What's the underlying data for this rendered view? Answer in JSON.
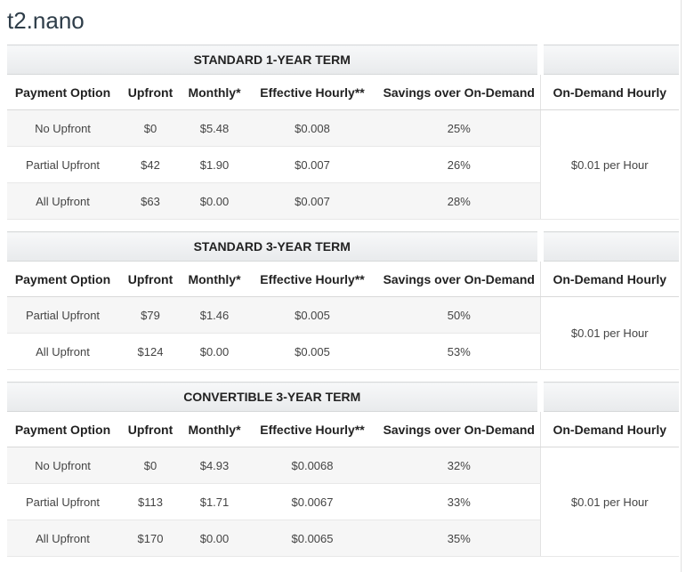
{
  "page": {
    "title": "t2.nano"
  },
  "columns": {
    "payment_option": "Payment Option",
    "upfront": "Upfront",
    "monthly": "Monthly*",
    "effective_hourly": "Effective Hourly**",
    "savings": "Savings over On-Demand",
    "on_demand_hourly": "On-Demand Hourly"
  },
  "tables": [
    {
      "term": "STANDARD 1-YEAR TERM",
      "on_demand_rate": "$0.01 per Hour",
      "rows": [
        {
          "payment_option": "No Upfront",
          "upfront": "$0",
          "monthly": "$5.48",
          "effective_hourly": "$0.008",
          "savings": "25%"
        },
        {
          "payment_option": "Partial Upfront",
          "upfront": "$42",
          "monthly": "$1.90",
          "effective_hourly": "$0.007",
          "savings": "26%"
        },
        {
          "payment_option": "All Upfront",
          "upfront": "$63",
          "monthly": "$0.00",
          "effective_hourly": "$0.007",
          "savings": "28%"
        }
      ]
    },
    {
      "term": "STANDARD 3-YEAR TERM",
      "on_demand_rate": "$0.01 per Hour",
      "rows": [
        {
          "payment_option": "Partial Upfront",
          "upfront": "$79",
          "monthly": "$1.46",
          "effective_hourly": "$0.005",
          "savings": "50%"
        },
        {
          "payment_option": "All Upfront",
          "upfront": "$124",
          "monthly": "$0.00",
          "effective_hourly": "$0.005",
          "savings": "53%"
        }
      ]
    },
    {
      "term": "CONVERTIBLE 3-YEAR TERM",
      "on_demand_rate": "$0.01 per Hour",
      "rows": [
        {
          "payment_option": "No Upfront",
          "upfront": "$0",
          "monthly": "$4.93",
          "effective_hourly": "$0.0068",
          "savings": "32%"
        },
        {
          "payment_option": "Partial Upfront",
          "upfront": "$113",
          "monthly": "$1.71",
          "effective_hourly": "$0.0067",
          "savings": "33%"
        },
        {
          "payment_option": "All Upfront",
          "upfront": "$170",
          "monthly": "$0.00",
          "effective_hourly": "$0.0065",
          "savings": "35%"
        }
      ]
    }
  ],
  "colors": {
    "title_text": "#2e3d49",
    "header_text": "#222222",
    "body_text": "#444444",
    "stripe_row_bg": "#f6f6f6",
    "term_band_top": "#f7f8f9",
    "term_band_bottom": "#e8eaec",
    "row_border": "#e8e8e8",
    "header_border": "#d9d9d9",
    "page_right_border": "#e0e0e0"
  }
}
